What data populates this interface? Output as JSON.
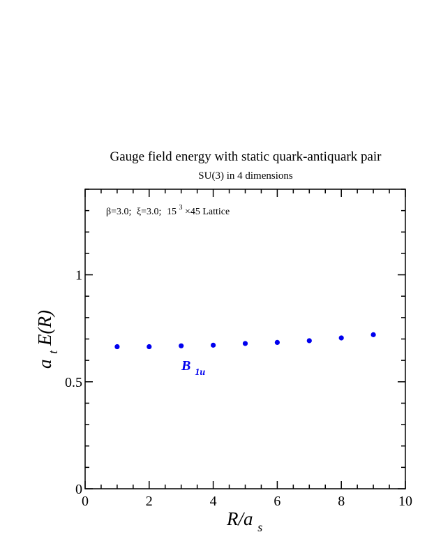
{
  "chart_data": {
    "type": "scatter",
    "title": "Gauge field energy with static quark-antiquark pair",
    "subtitle": "SU(3) in 4 dimensions",
    "annotation": {
      "beta": "β=3.0;",
      "xi": "ξ=3.0;",
      "lattice_base": "15",
      "lattice_exp": "3",
      "lattice_rest": "×45 Lattice"
    },
    "xlabel": {
      "main": "R/a",
      "sub": "s"
    },
    "ylabel": {
      "main": "a",
      "sub": "t",
      "rest": "E(R)"
    },
    "xlim": [
      0,
      10
    ],
    "ylim": [
      0,
      1.4
    ],
    "x_major_ticks": [
      0,
      2,
      4,
      6,
      8,
      10
    ],
    "x_tick_labels": [
      "0",
      "2",
      "4",
      "6",
      "8",
      "10"
    ],
    "y_major_ticks": [
      0,
      0.5,
      1
    ],
    "y_tick_labels": [
      "0",
      "0.5",
      "1"
    ],
    "series": [
      {
        "name": "B",
        "name_sub": "1u",
        "color": "#0000ee",
        "x": [
          1,
          2,
          3,
          4,
          5,
          6,
          7,
          8,
          9
        ],
        "y": [
          0.664,
          0.664,
          0.668,
          0.671,
          0.679,
          0.684,
          0.692,
          0.705,
          0.72
        ]
      }
    ],
    "grid": false
  }
}
